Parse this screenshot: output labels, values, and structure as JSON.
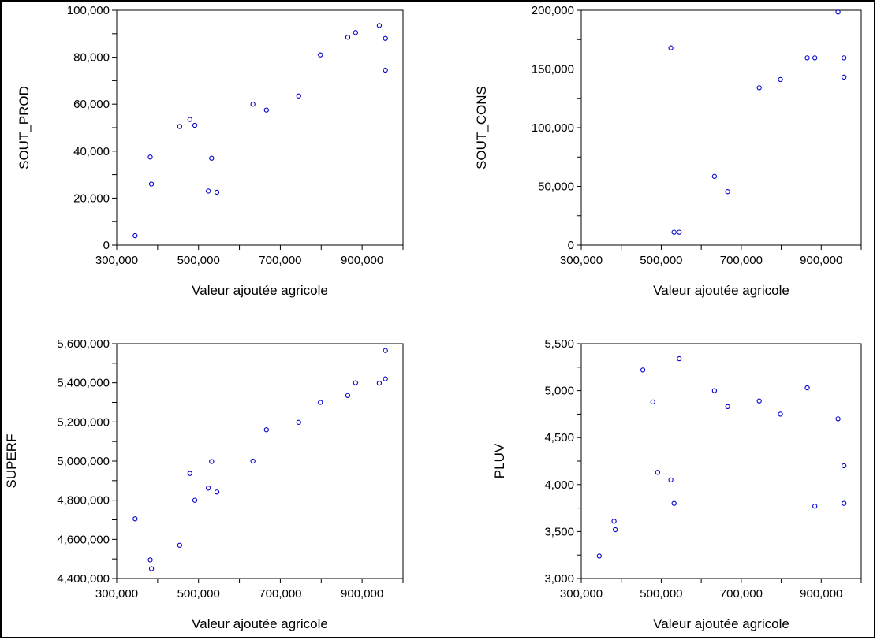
{
  "chart_data": [
    {
      "type": "scatter",
      "title": "",
      "xlabel": "Valeur ajoutée agricole",
      "ylabel": "SOUT_PROD",
      "xlim": [
        300000,
        1000000
      ],
      "ylim": [
        0,
        100000
      ],
      "xticks": [
        "300,000",
        "500,000",
        "700,000",
        "900,000"
      ],
      "xtick_values": [
        300000,
        500000,
        700000,
        900000
      ],
      "yticks": [
        "0",
        "20,000",
        "40,000",
        "60,000",
        "80,000",
        "100,000"
      ],
      "ytick_values": [
        0,
        20000,
        40000,
        60000,
        80000,
        100000
      ],
      "grid": false,
      "marker_color": "#0000cc",
      "points": [
        {
          "x": 345000,
          "y": 4000
        },
        {
          "x": 382000,
          "y": 37500
        },
        {
          "x": 385000,
          "y": 26000
        },
        {
          "x": 454000,
          "y": 50500
        },
        {
          "x": 479000,
          "y": 53500
        },
        {
          "x": 491000,
          "y": 51000
        },
        {
          "x": 524000,
          "y": 23000
        },
        {
          "x": 532000,
          "y": 37000
        },
        {
          "x": 545000,
          "y": 22500
        },
        {
          "x": 633000,
          "y": 60000
        },
        {
          "x": 666000,
          "y": 57500
        },
        {
          "x": 745000,
          "y": 63500
        },
        {
          "x": 798000,
          "y": 81000
        },
        {
          "x": 865000,
          "y": 88500
        },
        {
          "x": 884000,
          "y": 90500
        },
        {
          "x": 942000,
          "y": 93500
        },
        {
          "x": 957000,
          "y": 88000
        },
        {
          "x": 957000,
          "y": 74500
        }
      ]
    },
    {
      "type": "scatter",
      "title": "",
      "xlabel": "Valeur ajoutée agricole",
      "ylabel": "SOUT_CONS",
      "xlim": [
        300000,
        1000000
      ],
      "ylim": [
        0,
        200000
      ],
      "xticks": [
        "300,000",
        "500,000",
        "700,000",
        "900,000"
      ],
      "xtick_values": [
        300000,
        500000,
        700000,
        900000
      ],
      "yticks": [
        "0",
        "50,000",
        "100,000",
        "150,000",
        "200,000"
      ],
      "ytick_values": [
        0,
        50000,
        100000,
        150000,
        200000
      ],
      "grid": false,
      "marker_color": "#0000cc",
      "points": [
        {
          "x": 524000,
          "y": 168000
        },
        {
          "x": 532000,
          "y": 11000
        },
        {
          "x": 545000,
          "y": 11000
        },
        {
          "x": 633000,
          "y": 58500
        },
        {
          "x": 666000,
          "y": 45500
        },
        {
          "x": 745000,
          "y": 134000
        },
        {
          "x": 798000,
          "y": 141000
        },
        {
          "x": 865000,
          "y": 159500
        },
        {
          "x": 884000,
          "y": 159500
        },
        {
          "x": 942000,
          "y": 198500
        },
        {
          "x": 957000,
          "y": 159500
        },
        {
          "x": 957000,
          "y": 143000
        }
      ]
    },
    {
      "type": "scatter",
      "title": "",
      "xlabel": "Valeur ajoutée agricole",
      "ylabel": "SUPERF",
      "xlim": [
        300000,
        1000000
      ],
      "ylim": [
        4400000,
        5600000
      ],
      "xticks": [
        "300,000",
        "500,000",
        "700,000",
        "900,000"
      ],
      "xtick_values": [
        300000,
        500000,
        700000,
        900000
      ],
      "yticks": [
        "4,400,000",
        "4,600,000",
        "4,800,000",
        "5,000,000",
        "5,200,000",
        "5,400,000",
        "5,600,000"
      ],
      "ytick_values": [
        4400000,
        4600000,
        4800000,
        5000000,
        5200000,
        5400000,
        5600000
      ],
      "grid": false,
      "marker_color": "#0000cc",
      "points": [
        {
          "x": 345000,
          "y": 4705000
        },
        {
          "x": 382000,
          "y": 4495000
        },
        {
          "x": 385000,
          "y": 4450000
        },
        {
          "x": 454000,
          "y": 4570000
        },
        {
          "x": 479000,
          "y": 4937000
        },
        {
          "x": 491000,
          "y": 4800000
        },
        {
          "x": 524000,
          "y": 4862000
        },
        {
          "x": 532000,
          "y": 4998000
        },
        {
          "x": 545000,
          "y": 4842000
        },
        {
          "x": 633000,
          "y": 5000000
        },
        {
          "x": 666000,
          "y": 5160000
        },
        {
          "x": 745000,
          "y": 5198000
        },
        {
          "x": 798000,
          "y": 5300000
        },
        {
          "x": 865000,
          "y": 5335000
        },
        {
          "x": 884000,
          "y": 5400000
        },
        {
          "x": 942000,
          "y": 5398000
        },
        {
          "x": 957000,
          "y": 5420000
        },
        {
          "x": 957000,
          "y": 5565000
        }
      ]
    },
    {
      "type": "scatter",
      "title": "",
      "xlabel": "Valeur ajoutée agricole",
      "ylabel": "PLUV",
      "xlim": [
        300000,
        1000000
      ],
      "ylim": [
        3000,
        5500
      ],
      "xticks": [
        "300,000",
        "500,000",
        "700,000",
        "900,000"
      ],
      "xtick_values": [
        300000,
        500000,
        700000,
        900000
      ],
      "yticks": [
        "3,000",
        "3,500",
        "4,000",
        "4,500",
        "5,000",
        "5,500"
      ],
      "ytick_values": [
        3000,
        3500,
        4000,
        4500,
        5000,
        5500
      ],
      "grid": false,
      "marker_color": "#0000cc",
      "points": [
        {
          "x": 345000,
          "y": 3240
        },
        {
          "x": 382000,
          "y": 3610
        },
        {
          "x": 385000,
          "y": 3520
        },
        {
          "x": 454000,
          "y": 5220
        },
        {
          "x": 479000,
          "y": 4880
        },
        {
          "x": 491000,
          "y": 4130
        },
        {
          "x": 524000,
          "y": 4050
        },
        {
          "x": 532000,
          "y": 3800
        },
        {
          "x": 545000,
          "y": 5340
        },
        {
          "x": 633000,
          "y": 5000
        },
        {
          "x": 666000,
          "y": 4830
        },
        {
          "x": 745000,
          "y": 4890
        },
        {
          "x": 798000,
          "y": 4750
        },
        {
          "x": 865000,
          "y": 5030
        },
        {
          "x": 884000,
          "y": 3770
        },
        {
          "x": 942000,
          "y": 4700
        },
        {
          "x": 957000,
          "y": 4200
        },
        {
          "x": 957000,
          "y": 3800
        }
      ]
    }
  ]
}
